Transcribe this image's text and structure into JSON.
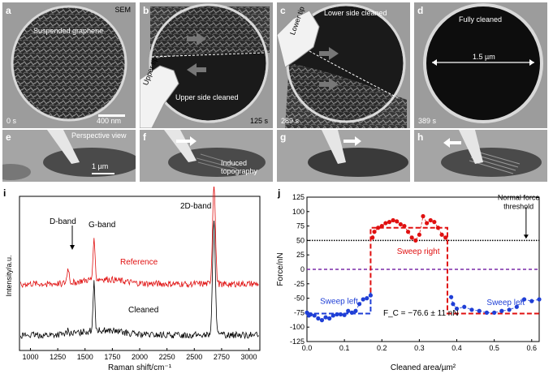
{
  "panels": {
    "a": {
      "letter": "a",
      "label": "Suspended graphene",
      "tag": "SEM",
      "time": "0 s",
      "scalebar": "400 nm"
    },
    "b": {
      "letter": "b",
      "time": "125 s",
      "tip": "Upper tip",
      "label": "Upper side cleaned"
    },
    "c": {
      "letter": "c",
      "time": "289 s",
      "tip": "Lower tip",
      "label": "Lower side cleaned"
    },
    "d": {
      "letter": "d",
      "time": "389 s",
      "label": "Fully cleaned",
      "dimension": "1.5 µm"
    },
    "e": {
      "letter": "e",
      "label": "Perspective view",
      "scalebar": "1 µm"
    },
    "f": {
      "letter": "f",
      "label": "Induced\ntopography"
    },
    "g": {
      "letter": "g"
    },
    "h": {
      "letter": "h"
    }
  },
  "raman": {
    "letter": "i",
    "xlabel": "Raman shift/cm⁻¹",
    "ylabel": "Intensity/a.u.",
    "xticks": [
      "1000",
      "1250",
      "1500",
      "1750",
      "2000",
      "2250",
      "2500",
      "2750",
      "3000"
    ],
    "dband": "D-band",
    "gband": "G-band",
    "band2d": "2D-band",
    "ref_label": "Reference",
    "clean_label": "Cleaned",
    "ref_color": "#e01010",
    "clean_color": "#000000"
  },
  "chart_data": {
    "type": "scatter",
    "title": "",
    "xlabel": "Cleaned area/µm²",
    "ylabel": "Force/nN",
    "xlim": [
      0.0,
      0.62
    ],
    "ylim": [
      -125,
      125
    ],
    "xticks": [
      "0.0",
      "0.1",
      "0.2",
      "0.3",
      "0.4",
      "0.5",
      "0.6"
    ],
    "yticks": [
      "-125",
      "-100",
      "-75",
      "-50",
      "-25",
      "0",
      "25",
      "50",
      "75",
      "100",
      "125"
    ],
    "threshold": 50,
    "threshold_label": "Normal force\nthreshold",
    "fc_label": "F_C = −76.6 ± 11 nN",
    "series": [
      {
        "name": "Sweep left",
        "color": "#1f3fd6",
        "points": [
          [
            0.0,
            -75
          ],
          [
            0.005,
            -80
          ],
          [
            0.01,
            -78
          ],
          [
            0.02,
            -80
          ],
          [
            0.03,
            -85
          ],
          [
            0.04,
            -88
          ],
          [
            0.05,
            -83
          ],
          [
            0.06,
            -85
          ],
          [
            0.07,
            -80
          ],
          [
            0.08,
            -78
          ],
          [
            0.09,
            -78
          ],
          [
            0.1,
            -79
          ],
          [
            0.11,
            -72
          ],
          [
            0.12,
            -75
          ],
          [
            0.13,
            -72
          ],
          [
            0.14,
            -60
          ],
          [
            0.15,
            -52
          ],
          [
            0.16,
            -50
          ],
          [
            0.17,
            -45
          ]
        ]
      },
      {
        "name": "Sweep right",
        "color": "#e01010",
        "points": [
          [
            0.175,
            55
          ],
          [
            0.18,
            65
          ],
          [
            0.19,
            72
          ],
          [
            0.2,
            75
          ],
          [
            0.21,
            80
          ],
          [
            0.22,
            82
          ],
          [
            0.23,
            85
          ],
          [
            0.24,
            83
          ],
          [
            0.25,
            78
          ],
          [
            0.26,
            75
          ],
          [
            0.27,
            65
          ],
          [
            0.28,
            55
          ],
          [
            0.29,
            50
          ],
          [
            0.3,
            60
          ],
          [
            0.31,
            92
          ],
          [
            0.32,
            80
          ],
          [
            0.33,
            85
          ],
          [
            0.34,
            82
          ],
          [
            0.35,
            72
          ],
          [
            0.36,
            60
          ],
          [
            0.37,
            55
          ]
        ]
      },
      {
        "name": "Sweep left",
        "color": "#1f3fd6",
        "points": [
          [
            0.385,
            -48
          ],
          [
            0.39,
            -60
          ],
          [
            0.4,
            -68
          ],
          [
            0.42,
            -65
          ],
          [
            0.44,
            -70
          ],
          [
            0.46,
            -72
          ],
          [
            0.48,
            -75
          ],
          [
            0.5,
            -75
          ],
          [
            0.52,
            -72
          ],
          [
            0.54,
            -70
          ],
          [
            0.56,
            -65
          ],
          [
            0.58,
            -52
          ],
          [
            0.6,
            -55
          ],
          [
            0.62,
            -52
          ]
        ]
      }
    ],
    "fit_lines": [
      {
        "color": "#1f3fd6",
        "points": [
          [
            0.0,
            -76.6
          ],
          [
            0.17,
            -76.6
          ],
          [
            0.17,
            -40
          ]
        ]
      },
      {
        "color": "#e01010",
        "points": [
          [
            0.17,
            -40
          ],
          [
            0.17,
            72
          ],
          [
            0.375,
            72
          ],
          [
            0.375,
            -76.6
          ],
          [
            0.62,
            -76.6
          ]
        ]
      }
    ],
    "zero_line": {
      "value": 0,
      "color": "#7a2aa8"
    }
  },
  "panel_j_letter": "j"
}
